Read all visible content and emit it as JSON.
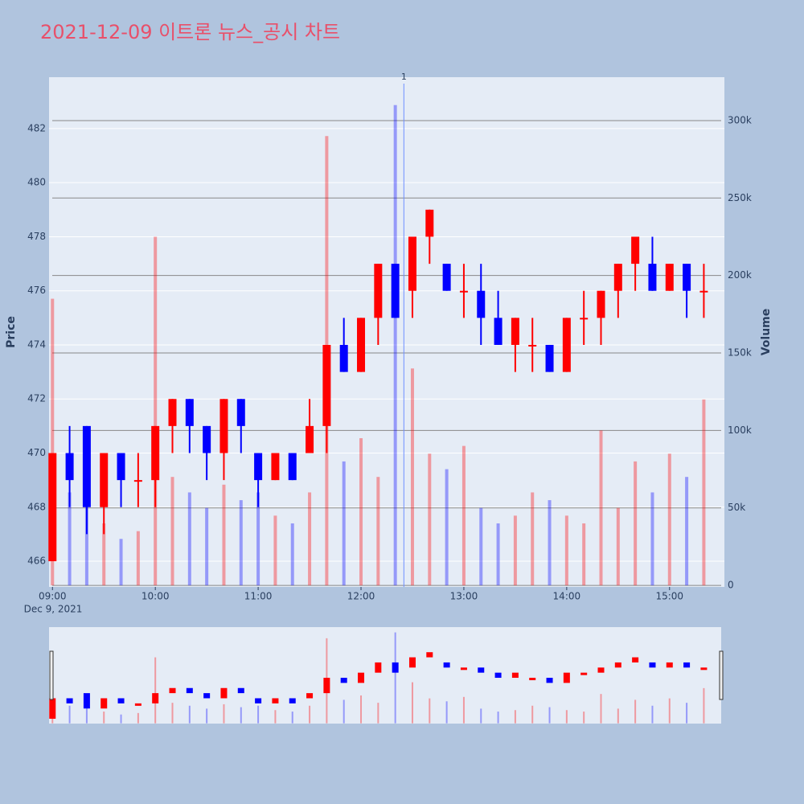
{
  "chart_data": {
    "type": "candlestick",
    "title": "2021-12-09 이트론 뉴스_공시 차트",
    "ylabel": "Price",
    "y2label": "Volume",
    "x_sublabel": "Dec 9, 2021",
    "x": [
      "09:00",
      "09:10",
      "09:20",
      "09:30",
      "09:40",
      "09:50",
      "10:00",
      "10:10",
      "10:20",
      "10:30",
      "10:40",
      "10:50",
      "11:00",
      "11:10",
      "11:20",
      "11:30",
      "11:40",
      "11:50",
      "12:00",
      "12:10",
      "12:20",
      "12:30",
      "12:40",
      "12:50",
      "13:00",
      "13:10",
      "13:20",
      "13:30",
      "13:40",
      "13:50",
      "14:00",
      "14:10",
      "14:20",
      "14:30",
      "14:40",
      "14:50",
      "15:00",
      "15:10",
      "15:20"
    ],
    "open": [
      466,
      470,
      471,
      468,
      470,
      469,
      469,
      471,
      472,
      471,
      470,
      472,
      470,
      469,
      470,
      470,
      471,
      474,
      473,
      475,
      477,
      476,
      478,
      477,
      476,
      476,
      475,
      474,
      474,
      474,
      473,
      475,
      475,
      476,
      477,
      477,
      476,
      477,
      476
    ],
    "high": [
      470,
      471,
      471,
      470,
      470,
      470,
      471,
      472,
      472,
      471,
      472,
      472,
      470,
      470,
      470,
      472,
      474,
      475,
      475,
      477,
      477,
      478,
      479,
      477,
      477,
      477,
      476,
      475,
      475,
      474,
      475,
      476,
      476,
      477,
      478,
      478,
      477,
      477,
      477
    ],
    "low": [
      466,
      468,
      467,
      467,
      468,
      468,
      468,
      470,
      470,
      469,
      469,
      470,
      468,
      469,
      469,
      470,
      470,
      473,
      473,
      474,
      475,
      475,
      477,
      476,
      475,
      474,
      474,
      473,
      473,
      473,
      473,
      474,
      474,
      475,
      476,
      476,
      476,
      475,
      475
    ],
    "close": [
      470,
      469,
      468,
      470,
      469,
      469,
      471,
      472,
      471,
      470,
      472,
      471,
      469,
      470,
      469,
      471,
      474,
      473,
      475,
      477,
      475,
      478,
      479,
      476,
      476,
      475,
      474,
      475,
      474,
      473,
      475,
      475,
      476,
      477,
      478,
      476,
      477,
      476,
      476
    ],
    "volume": [
      185000,
      60000,
      70000,
      40000,
      30000,
      35000,
      225000,
      70000,
      60000,
      50000,
      65000,
      55000,
      60000,
      45000,
      40000,
      60000,
      290000,
      80000,
      95000,
      70000,
      310000,
      140000,
      85000,
      75000,
      90000,
      50000,
      40000,
      45000,
      60000,
      55000,
      45000,
      40000,
      100000,
      50000,
      80000,
      60000,
      85000,
      70000,
      120000
    ],
    "increasing_color": "#ff0000",
    "decreasing_color": "#0000ff",
    "xlim": [
      "08:58",
      "15:32"
    ],
    "xticks": [
      "09:00",
      "10:00",
      "11:00",
      "12:00",
      "13:00",
      "14:00",
      "15:00"
    ],
    "ylim": [
      465.05,
      483.9
    ],
    "yticks": [
      466,
      468,
      470,
      472,
      474,
      476,
      478,
      480,
      482
    ],
    "y2lim": [
      -1000,
      328000
    ],
    "y2ticks": [
      0,
      {
        "value": 50000,
        "label": "50k"
      },
      {
        "value": 100000,
        "label": "100k"
      },
      {
        "value": 150000,
        "label": "150k"
      },
      {
        "value": 200000,
        "label": "200k"
      },
      {
        "value": 250000,
        "label": "250k"
      },
      {
        "value": 300000,
        "label": "300k"
      }
    ],
    "annotations": [
      {
        "x": "12:25",
        "text": "1"
      }
    ],
    "grid": true
  }
}
